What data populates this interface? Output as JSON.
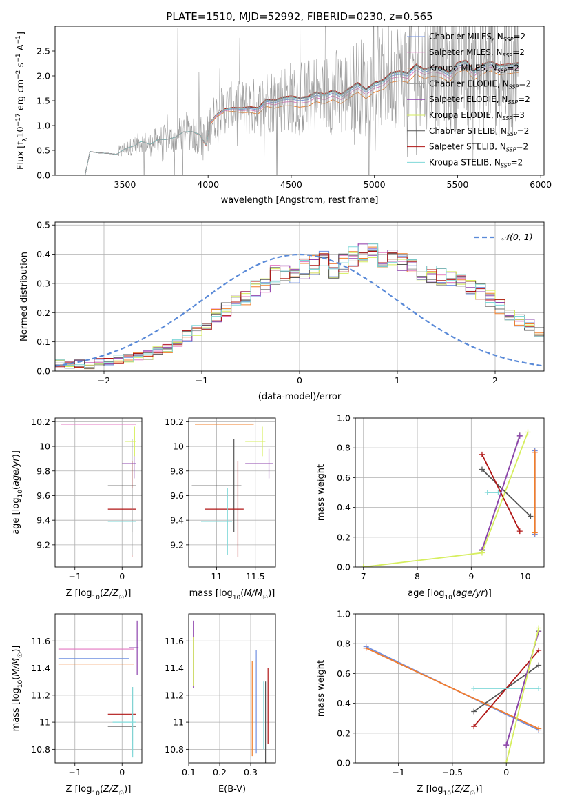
{
  "figure_title": "PLATE=1510, MJD=52992, FIBERID=0230, z=0.565",
  "series_colors": {
    "Chabrier MILES": "#6f8fe0",
    "Salpeter MILES": "#e377c2",
    "Kroupa MILES": "#f07f2a",
    "Chabrier ELODIE": "#9a9a9a",
    "Salpeter ELODIE": "#8e44ad",
    "Kroupa ELODIE": "#d6ee5e",
    "Chabrier STELIB": "#555555",
    "Salpeter STELIB": "#b01515",
    "Kroupa STELIB": "#7fd8d8"
  },
  "chart_data": [
    {
      "type": "line",
      "xlabel": "wavelength [Angstrom, rest frame]",
      "ylabel": "Flux [f_λ 10^-17 erg cm^-2 s^-1 A^-1]",
      "xlim": [
        3080,
        6020
      ],
      "ylim": [
        0,
        3.0
      ],
      "xticks": [
        3500,
        4000,
        4500,
        5000,
        5500,
        6000
      ],
      "yticks": [
        0.0,
        0.5,
        1.0,
        1.5,
        2.0,
        2.5
      ],
      "grid": false,
      "legend_position": "upper-right",
      "legend": [
        {
          "label": "Chabrier MILES, N_SSP=2",
          "series": "Chabrier MILES",
          "base": "Chabrier MILES, N",
          "sub": "SSP",
          "tail": "=2"
        },
        {
          "label": "Salpeter MILES, N_SSP=2",
          "series": "Salpeter MILES",
          "base": "Salpeter MILES, N",
          "sub": "SSP",
          "tail": "=2"
        },
        {
          "label": "Kroupa MILES, N_SSP=2",
          "series": "Kroupa MILES",
          "base": "Kroupa MILES, N",
          "sub": "SSP",
          "tail": "=2"
        },
        {
          "label": "Chabrier ELODIE, N_SSP=2",
          "series": "Chabrier ELODIE",
          "base": "Chabrier ELODIE, N",
          "sub": "SSP",
          "tail": "=2"
        },
        {
          "label": "Salpeter ELODIE, N_SSP=2",
          "series": "Salpeter ELODIE",
          "base": "Salpeter ELODIE, N",
          "sub": "SSP",
          "tail": "=2"
        },
        {
          "label": "Kroupa ELODIE, N_SSP=3",
          "series": "Kroupa ELODIE",
          "base": "Kroupa ELODIE, N",
          "sub": "SSP",
          "tail": "=3"
        },
        {
          "label": "Chabrier STELIB, N_SSP=2",
          "series": "Chabrier STELIB",
          "base": "Chabrier STELIB, N",
          "sub": "SSP",
          "tail": "=2"
        },
        {
          "label": "Salpeter STELIB, N_SSP=2",
          "series": "Salpeter STELIB",
          "base": "Salpeter STELIB, N",
          "sub": "SSP",
          "tail": "=2"
        },
        {
          "label": "Kroupa STELIB, N_SSP=2",
          "series": "Kroupa STELIB",
          "base": "Kroupa STELIB, N",
          "sub": "SSP",
          "tail": "=2"
        }
      ],
      "data_start": 3260,
      "data_end": 5870,
      "continuum": {
        "x": [
          3260,
          3290,
          3300,
          3340,
          3400,
          3450,
          3500,
          3560,
          3600,
          3650,
          3700,
          3750,
          3800,
          3850,
          3900,
          3950,
          3990,
          4010,
          4050,
          4100,
          4150,
          4200,
          4250,
          4300,
          4350,
          4400,
          4450,
          4500,
          4550,
          4600,
          4650,
          4700,
          4750,
          4800,
          4850,
          4900,
          4950,
          5000,
          5050,
          5100,
          5150,
          5200,
          5250,
          5300,
          5350,
          5400,
          5450,
          5500,
          5550,
          5600,
          5650,
          5700,
          5750,
          5800,
          5870
        ],
        "y": [
          0.0,
          0.48,
          0.47,
          0.45,
          0.44,
          0.42,
          0.53,
          0.6,
          0.68,
          0.62,
          0.72,
          0.72,
          0.76,
          0.87,
          0.88,
          0.82,
          0.6,
          1.05,
          1.22,
          1.33,
          1.36,
          1.35,
          1.37,
          1.35,
          1.52,
          1.5,
          1.56,
          1.58,
          1.55,
          1.57,
          1.66,
          1.62,
          1.7,
          1.62,
          1.74,
          1.85,
          1.72,
          1.85,
          1.9,
          2.05,
          2.08,
          2.05,
          2.22,
          2.12,
          2.18,
          2.15,
          2.05,
          2.25,
          2.3,
          2.1,
          2.22,
          2.28,
          2.2,
          2.22,
          2.25
        ]
      },
      "noisy_spectrum": {
        "series": "Chabrier ELODIE",
        "noise_start": 3480,
        "note_amplitude": "noise grows toward red end"
      }
    },
    {
      "type": "histogram",
      "xlabel": "(data-model)/error",
      "ylabel": "Normed distribution",
      "xlim": [
        -2.5,
        2.5
      ],
      "ylim": [
        0,
        0.51
      ],
      "xticks": [
        -2,
        -1,
        0,
        1,
        2
      ],
      "yticks": [
        0.0,
        0.1,
        0.2,
        0.3,
        0.4,
        0.5
      ],
      "grid": true,
      "legend_position": "upper-right",
      "legend": [
        {
          "label": "𝒩(0, 1)",
          "color": "#5a8ad8"
        }
      ],
      "bin_width": 0.1,
      "bin_start": -2.5,
      "envelope": [
        0.025,
        0.02,
        0.025,
        0.02,
        0.03,
        0.03,
        0.04,
        0.045,
        0.05,
        0.055,
        0.07,
        0.08,
        0.1,
        0.12,
        0.14,
        0.15,
        0.19,
        0.21,
        0.24,
        0.25,
        0.28,
        0.3,
        0.33,
        0.34,
        0.32,
        0.35,
        0.36,
        0.38,
        0.35,
        0.37,
        0.39,
        0.4,
        0.41,
        0.39,
        0.38,
        0.37,
        0.36,
        0.34,
        0.33,
        0.32,
        0.31,
        0.3,
        0.29,
        0.27,
        0.25,
        0.22,
        0.2,
        0.17,
        0.16,
        0.13,
        0.12
      ]
    },
    {
      "type": "errorbar",
      "xlabel": "Z [log10(Z/Z☉)]",
      "ylabel": "age [log10(age/yr)]",
      "xlim": [
        -1.42,
        0.42
      ],
      "ylim": [
        9.02,
        10.23
      ],
      "xticks": [
        -1,
        0
      ],
      "yticks": [
        9.2,
        9.4,
        9.6,
        9.8,
        10.0,
        10.2
      ],
      "grid": true,
      "points": [
        {
          "series": "Chabrier MILES",
          "x": -0.5,
          "xerr": 0.8,
          "y": 10.18,
          "yerr": 0.0
        },
        {
          "series": "Kroupa MILES",
          "x": -0.5,
          "xerr": 0.8,
          "y": 10.18,
          "yerr": 0.0
        },
        {
          "series": "Salpeter MILES",
          "x": -0.5,
          "xerr": 0.8,
          "y": 10.18,
          "yerr": 0.0
        },
        {
          "series": "Chabrier STELIB",
          "x": 0.0,
          "xerr": 0.3,
          "y": 9.68,
          "yerr": 0.38
        },
        {
          "series": "Salpeter STELIB",
          "x": 0.0,
          "xerr": 0.3,
          "y": 9.49,
          "yerr": 0.39
        },
        {
          "series": "Kroupa STELIB",
          "x": 0.0,
          "xerr": 0.3,
          "y": 9.39,
          "yerr": 0.27
        },
        {
          "series": "Salpeter ELODIE",
          "x": 0.15,
          "xerr": 0.15,
          "y": 9.86,
          "yerr": 0.12
        },
        {
          "series": "Kroupa ELODIE",
          "x": 0.18,
          "xerr": 0.12,
          "y": 10.04,
          "yerr": 0.12
        }
      ]
    },
    {
      "type": "errorbar",
      "xlabel": "mass [log10(M/M☉)]",
      "ylabel": "",
      "xlim": [
        10.64,
        11.76
      ],
      "ylim": [
        9.02,
        10.23
      ],
      "xticks": [
        11.0,
        11.5
      ],
      "yticks": [
        9.2,
        9.4,
        9.6,
        9.8,
        10.0,
        10.2
      ],
      "grid": true,
      "points": [
        {
          "series": "Kroupa MILES",
          "x": 11.1,
          "xerr": 0.38,
          "y": 10.18,
          "yerr": 0.0
        },
        {
          "series": "Chabrier STELIB",
          "x": 11.0,
          "xerr": 0.32,
          "y": 9.68,
          "yerr": 0.38
        },
        {
          "series": "Salpeter STELIB",
          "x": 11.1,
          "xerr": 0.25,
          "y": 9.49,
          "yerr": 0.39
        },
        {
          "series": "Kroupa STELIB",
          "x": 11.0,
          "xerr": 0.2,
          "y": 9.39,
          "yerr": 0.27
        },
        {
          "series": "Salpeter ELODIE",
          "x": 11.55,
          "xerr": 0.18,
          "y": 9.86,
          "yerr": 0.12
        },
        {
          "series": "Kroupa ELODIE",
          "x": 11.5,
          "xerr": 0.13,
          "y": 10.04,
          "yerr": 0.12
        }
      ]
    },
    {
      "type": "line",
      "xlabel": "age [log10(age/yr)]",
      "ylabel": "mass weight",
      "xlim": [
        6.85,
        10.35
      ],
      "ylim": [
        0,
        1.0
      ],
      "xticks": [
        7,
        8,
        9,
        10
      ],
      "yticks": [
        0.0,
        0.2,
        0.4,
        0.6,
        0.8,
        1.0
      ],
      "grid": true,
      "lines": [
        {
          "series": "Chabrier STELIB",
          "x": [
            9.2,
            10.1
          ],
          "y": [
            0.655,
            0.34
          ]
        },
        {
          "series": "Salpeter STELIB",
          "x": [
            9.2,
            9.9
          ],
          "y": [
            0.755,
            0.24
          ]
        },
        {
          "series": "Kroupa STELIB",
          "x": [
            9.3,
            9.5
          ],
          "y": [
            0.5,
            0.5
          ]
        },
        {
          "series": "Chabrier ELODIE",
          "x": [
            9.2,
            9.9
          ],
          "y": [
            0.11,
            0.885
          ]
        },
        {
          "series": "Salpeter ELODIE",
          "x": [
            9.2,
            9.9
          ],
          "y": [
            0.115,
            0.88
          ]
        },
        {
          "series": "Kroupa ELODIE",
          "x": [
            7.0,
            9.2,
            10.05
          ],
          "y": [
            0.0,
            0.095,
            0.905
          ]
        },
        {
          "series": "Chabrier MILES",
          "x": [
            10.18,
            10.18
          ],
          "y": [
            0.22,
            0.78
          ]
        },
        {
          "series": "Salpeter MILES",
          "x": [
            10.18,
            10.18
          ],
          "y": [
            0.23,
            0.77
          ]
        },
        {
          "series": "Kroupa MILES",
          "x": [
            10.18,
            10.18
          ],
          "y": [
            0.23,
            0.77
          ]
        }
      ]
    },
    {
      "type": "errorbar",
      "xlabel": "Z [log10(Z/Z☉)]",
      "ylabel": "mass [log10(M/M☉)]",
      "xlim": [
        -1.42,
        0.42
      ],
      "ylim": [
        10.7,
        11.8
      ],
      "xticks": [
        -1,
        0
      ],
      "yticks": [
        10.8,
        11.0,
        11.2,
        11.4,
        11.6
      ],
      "grid": true,
      "points": [
        {
          "series": "Salpeter MILES",
          "x": -0.55,
          "xerr": 0.8,
          "y": 11.54,
          "yerr": 0.0
        },
        {
          "series": "Chabrier MILES",
          "x": -0.6,
          "xerr": 0.75,
          "y": 11.47,
          "yerr": 0.0
        },
        {
          "series": "Kroupa MILES",
          "x": -0.55,
          "xerr": 0.8,
          "y": 11.43,
          "yerr": 0.0
        },
        {
          "series": "Chabrier STELIB",
          "x": 0.0,
          "xerr": 0.3,
          "y": 10.97,
          "yerr": 0.2
        },
        {
          "series": "Salpeter STELIB",
          "x": 0.0,
          "xerr": 0.3,
          "y": 11.06,
          "yerr": 0.2
        },
        {
          "series": "Kroupa STELIB",
          "x": 0.05,
          "xerr": 0.25,
          "y": 11.0,
          "yerr": 0.26
        },
        {
          "series": "Salpeter ELODIE",
          "x": 0.25,
          "xerr": 0.1,
          "y": 11.55,
          "yerr": 0.2
        }
      ]
    },
    {
      "type": "errorbar",
      "xlabel": "E(B-V)",
      "ylabel": "",
      "xlim": [
        0.1,
        0.38
      ],
      "ylim": [
        10.7,
        11.8
      ],
      "xticks": [
        0.1,
        0.2,
        0.3
      ],
      "yticks": [
        10.8,
        11.0,
        11.2,
        11.4,
        11.6
      ],
      "grid": true,
      "points": [
        {
          "series": "Salpeter ELODIE",
          "x": 0.115,
          "xerr": 0.0,
          "y": 11.5,
          "yerr": 0.25
        },
        {
          "series": "Kroupa ELODIE",
          "x": 0.115,
          "xerr": 0.0,
          "y": 11.45,
          "yerr": 0.18
        },
        {
          "series": "Kroupa MILES",
          "x": 0.305,
          "xerr": 0.0,
          "y": 11.1,
          "yerr": 0.35
        },
        {
          "series": "Chabrier MILES",
          "x": 0.318,
          "xerr": 0.0,
          "y": 11.15,
          "yerr": 0.38
        },
        {
          "series": "Kroupa STELIB",
          "x": 0.342,
          "xerr": 0.0,
          "y": 11.05,
          "yerr": 0.25
        },
        {
          "series": "Chabrier STELIB",
          "x": 0.348,
          "xerr": 0.0,
          "y": 11.0,
          "yerr": 0.3
        },
        {
          "series": "Salpeter STELIB",
          "x": 0.356,
          "xerr": 0.0,
          "y": 11.12,
          "yerr": 0.28
        }
      ]
    },
    {
      "type": "line",
      "xlabel": "Z [log10(Z/Z☉)]",
      "ylabel": "mass weight",
      "xlim": [
        -1.4,
        0.35
      ],
      "ylim": [
        0,
        1.0
      ],
      "xticks": [
        -1.0,
        -0.5,
        0.0
      ],
      "yticks": [
        0.0,
        0.2,
        0.4,
        0.6,
        0.8,
        1.0
      ],
      "grid": true,
      "lines": [
        {
          "series": "Chabrier MILES",
          "x": [
            -1.3,
            0.3
          ],
          "y": [
            0.78,
            0.22
          ]
        },
        {
          "series": "Salpeter MILES",
          "x": [
            -1.3,
            0.3
          ],
          "y": [
            0.77,
            0.23
          ]
        },
        {
          "series": "Kroupa MILES",
          "x": [
            -1.3,
            0.3
          ],
          "y": [
            0.77,
            0.23
          ]
        },
        {
          "series": "Chabrier STELIB",
          "x": [
            -0.3,
            0.3
          ],
          "y": [
            0.345,
            0.655
          ]
        },
        {
          "series": "Salpeter STELIB",
          "x": [
            -0.3,
            0.3
          ],
          "y": [
            0.245,
            0.755
          ]
        },
        {
          "series": "Kroupa STELIB",
          "x": [
            -0.3,
            0.3
          ],
          "y": [
            0.5,
            0.5
          ]
        },
        {
          "series": "Chabrier ELODIE",
          "x": [
            0.0,
            0.3
          ],
          "y": [
            0.115,
            0.885
          ]
        },
        {
          "series": "Salpeter ELODIE",
          "x": [
            0.0,
            0.3
          ],
          "y": [
            0.12,
            0.88
          ]
        },
        {
          "series": "Kroupa ELODIE",
          "x": [
            0.0,
            0.3
          ],
          "y": [
            0.0,
            0.905
          ]
        }
      ]
    }
  ]
}
